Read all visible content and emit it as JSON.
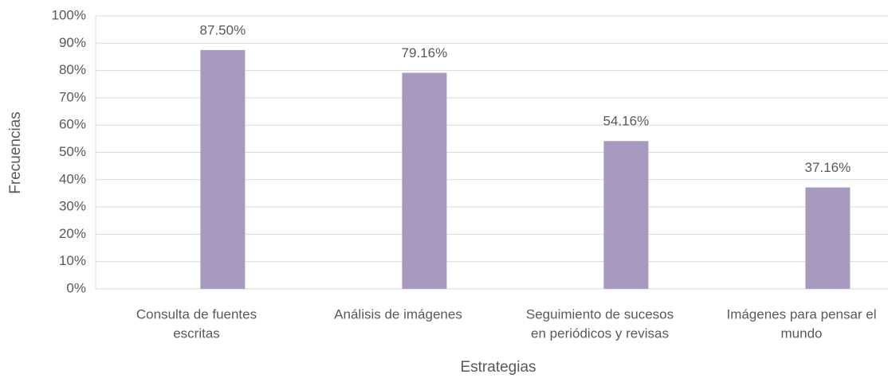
{
  "chart_data": {
    "type": "bar",
    "x_label": "Estrategias",
    "y_label": "Frecuencias",
    "categories": [
      [
        "Consulta de fuentes",
        "escritas"
      ],
      [
        "Análisis de imágenes"
      ],
      [
        "Seguimiento de sucesos",
        "en periódicos y revisas"
      ],
      [
        "Imágenes para pensar el",
        "mundo"
      ]
    ],
    "values": [
      87.5,
      79.16,
      54.16,
      37.16
    ],
    "value_labels": [
      "87.50%",
      "79.16%",
      "54.16%",
      "37.16%"
    ],
    "color": "#a89abe",
    "ylim": [
      0,
      100
    ],
    "yticks": [
      {
        "value": 0,
        "label": "0%"
      },
      {
        "value": 10,
        "label": "10%"
      },
      {
        "value": 20,
        "label": "20%"
      },
      {
        "value": 30,
        "label": "30%"
      },
      {
        "value": 40,
        "label": "40%"
      },
      {
        "value": 50,
        "label": "50%"
      },
      {
        "value": 60,
        "label": "60%"
      },
      {
        "value": 70,
        "label": "70%"
      },
      {
        "value": 80,
        "label": "80%"
      },
      {
        "value": 90,
        "label": "90%"
      },
      {
        "value": 100,
        "label": "100%"
      }
    ],
    "grid": true
  }
}
